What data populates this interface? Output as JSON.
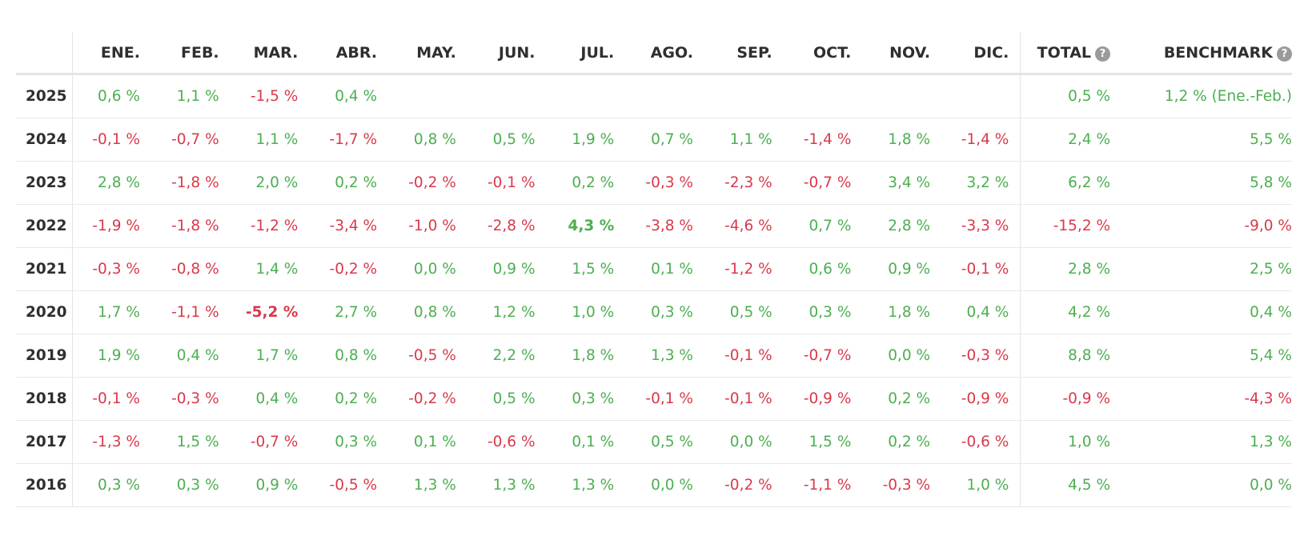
{
  "table": {
    "headers": {
      "months": [
        "ENE.",
        "FEB.",
        "MAR.",
        "ABR.",
        "MAY.",
        "JUN.",
        "JUL.",
        "AGO.",
        "SEP.",
        "OCT.",
        "NOV.",
        "DIC."
      ],
      "total": "TOTAL",
      "benchmark": "BENCHMARK",
      "help_glyph": "?"
    },
    "colors": {
      "positive": "#4caf50",
      "negative": "#d9394b"
    },
    "rows": [
      {
        "year": "2025",
        "months": [
          "0,6 %",
          "1,1 %",
          "-1,5 %",
          "0,4 %",
          "",
          "",
          "",
          "",
          "",
          "",
          "",
          ""
        ],
        "total": "0,5 %",
        "benchmark": "1,2 % (Ene.-Feb.)"
      },
      {
        "year": "2024",
        "months": [
          "-0,1 %",
          "-0,7 %",
          "1,1 %",
          "-1,7 %",
          "0,8 %",
          "0,5 %",
          "1,9 %",
          "0,7 %",
          "1,1 %",
          "-1,4 %",
          "1,8 %",
          "-1,4 %"
        ],
        "total": "2,4 %",
        "benchmark": "5,5 %"
      },
      {
        "year": "2023",
        "months": [
          "2,8 %",
          "-1,8 %",
          "2,0 %",
          "0,2 %",
          "-0,2 %",
          "-0,1 %",
          "0,2 %",
          "-0,3 %",
          "-2,3 %",
          "-0,7 %",
          "3,4 %",
          "3,2 %"
        ],
        "total": "6,2 %",
        "benchmark": "5,8 %"
      },
      {
        "year": "2022",
        "months": [
          "-1,9 %",
          "-1,8 %",
          "-1,2 %",
          "-3,4 %",
          "-1,0 %",
          "-2,8 %",
          "4,3 %",
          "-3,8 %",
          "-4,6 %",
          "0,7 %",
          "2,8 %",
          "-3,3 %"
        ],
        "total": "-15,2 %",
        "benchmark": "-9,0 %",
        "highlight": 6
      },
      {
        "year": "2021",
        "months": [
          "-0,3 %",
          "-0,8 %",
          "1,4 %",
          "-0,2 %",
          "0,0 %",
          "0,9 %",
          "1,5 %",
          "0,1 %",
          "-1,2 %",
          "0,6 %",
          "0,9 %",
          "-0,1 %"
        ],
        "total": "2,8 %",
        "benchmark": "2,5 %"
      },
      {
        "year": "2020",
        "months": [
          "1,7 %",
          "-1,1 %",
          "-5,2 %",
          "2,7 %",
          "0,8 %",
          "1,2 %",
          "1,0 %",
          "0,3 %",
          "0,5 %",
          "0,3 %",
          "1,8 %",
          "0,4 %"
        ],
        "total": "4,2 %",
        "benchmark": "0,4 %",
        "highlight": 2
      },
      {
        "year": "2019",
        "months": [
          "1,9 %",
          "0,4 %",
          "1,7 %",
          "0,8 %",
          "-0,5 %",
          "2,2 %",
          "1,8 %",
          "1,3 %",
          "-0,1 %",
          "-0,7 %",
          "0,0 %",
          "-0,3 %"
        ],
        "total": "8,8 %",
        "benchmark": "5,4 %"
      },
      {
        "year": "2018",
        "months": [
          "-0,1 %",
          "-0,3 %",
          "0,4 %",
          "0,2 %",
          "-0,2 %",
          "0,5 %",
          "0,3 %",
          "-0,1 %",
          "-0,1 %",
          "-0,9 %",
          "0,2 %",
          "-0,9 %"
        ],
        "total": "-0,9 %",
        "benchmark": "-4,3 %"
      },
      {
        "year": "2017",
        "months": [
          "-1,3 %",
          "1,5 %",
          "-0,7 %",
          "0,3 %",
          "0,1 %",
          "-0,6 %",
          "0,1 %",
          "0,5 %",
          "0,0 %",
          "1,5 %",
          "0,2 %",
          "-0,6 %"
        ],
        "total": "1,0 %",
        "benchmark": "1,3 %"
      },
      {
        "year": "2016",
        "months": [
          "0,3 %",
          "0,3 %",
          "0,9 %",
          "-0,5 %",
          "1,3 %",
          "1,3 %",
          "1,3 %",
          "0,0 %",
          "-0,2 %",
          "-1,1 %",
          "-0,3 %",
          "1,0 %"
        ],
        "total": "4,5 %",
        "benchmark": "0,0 %"
      }
    ]
  }
}
